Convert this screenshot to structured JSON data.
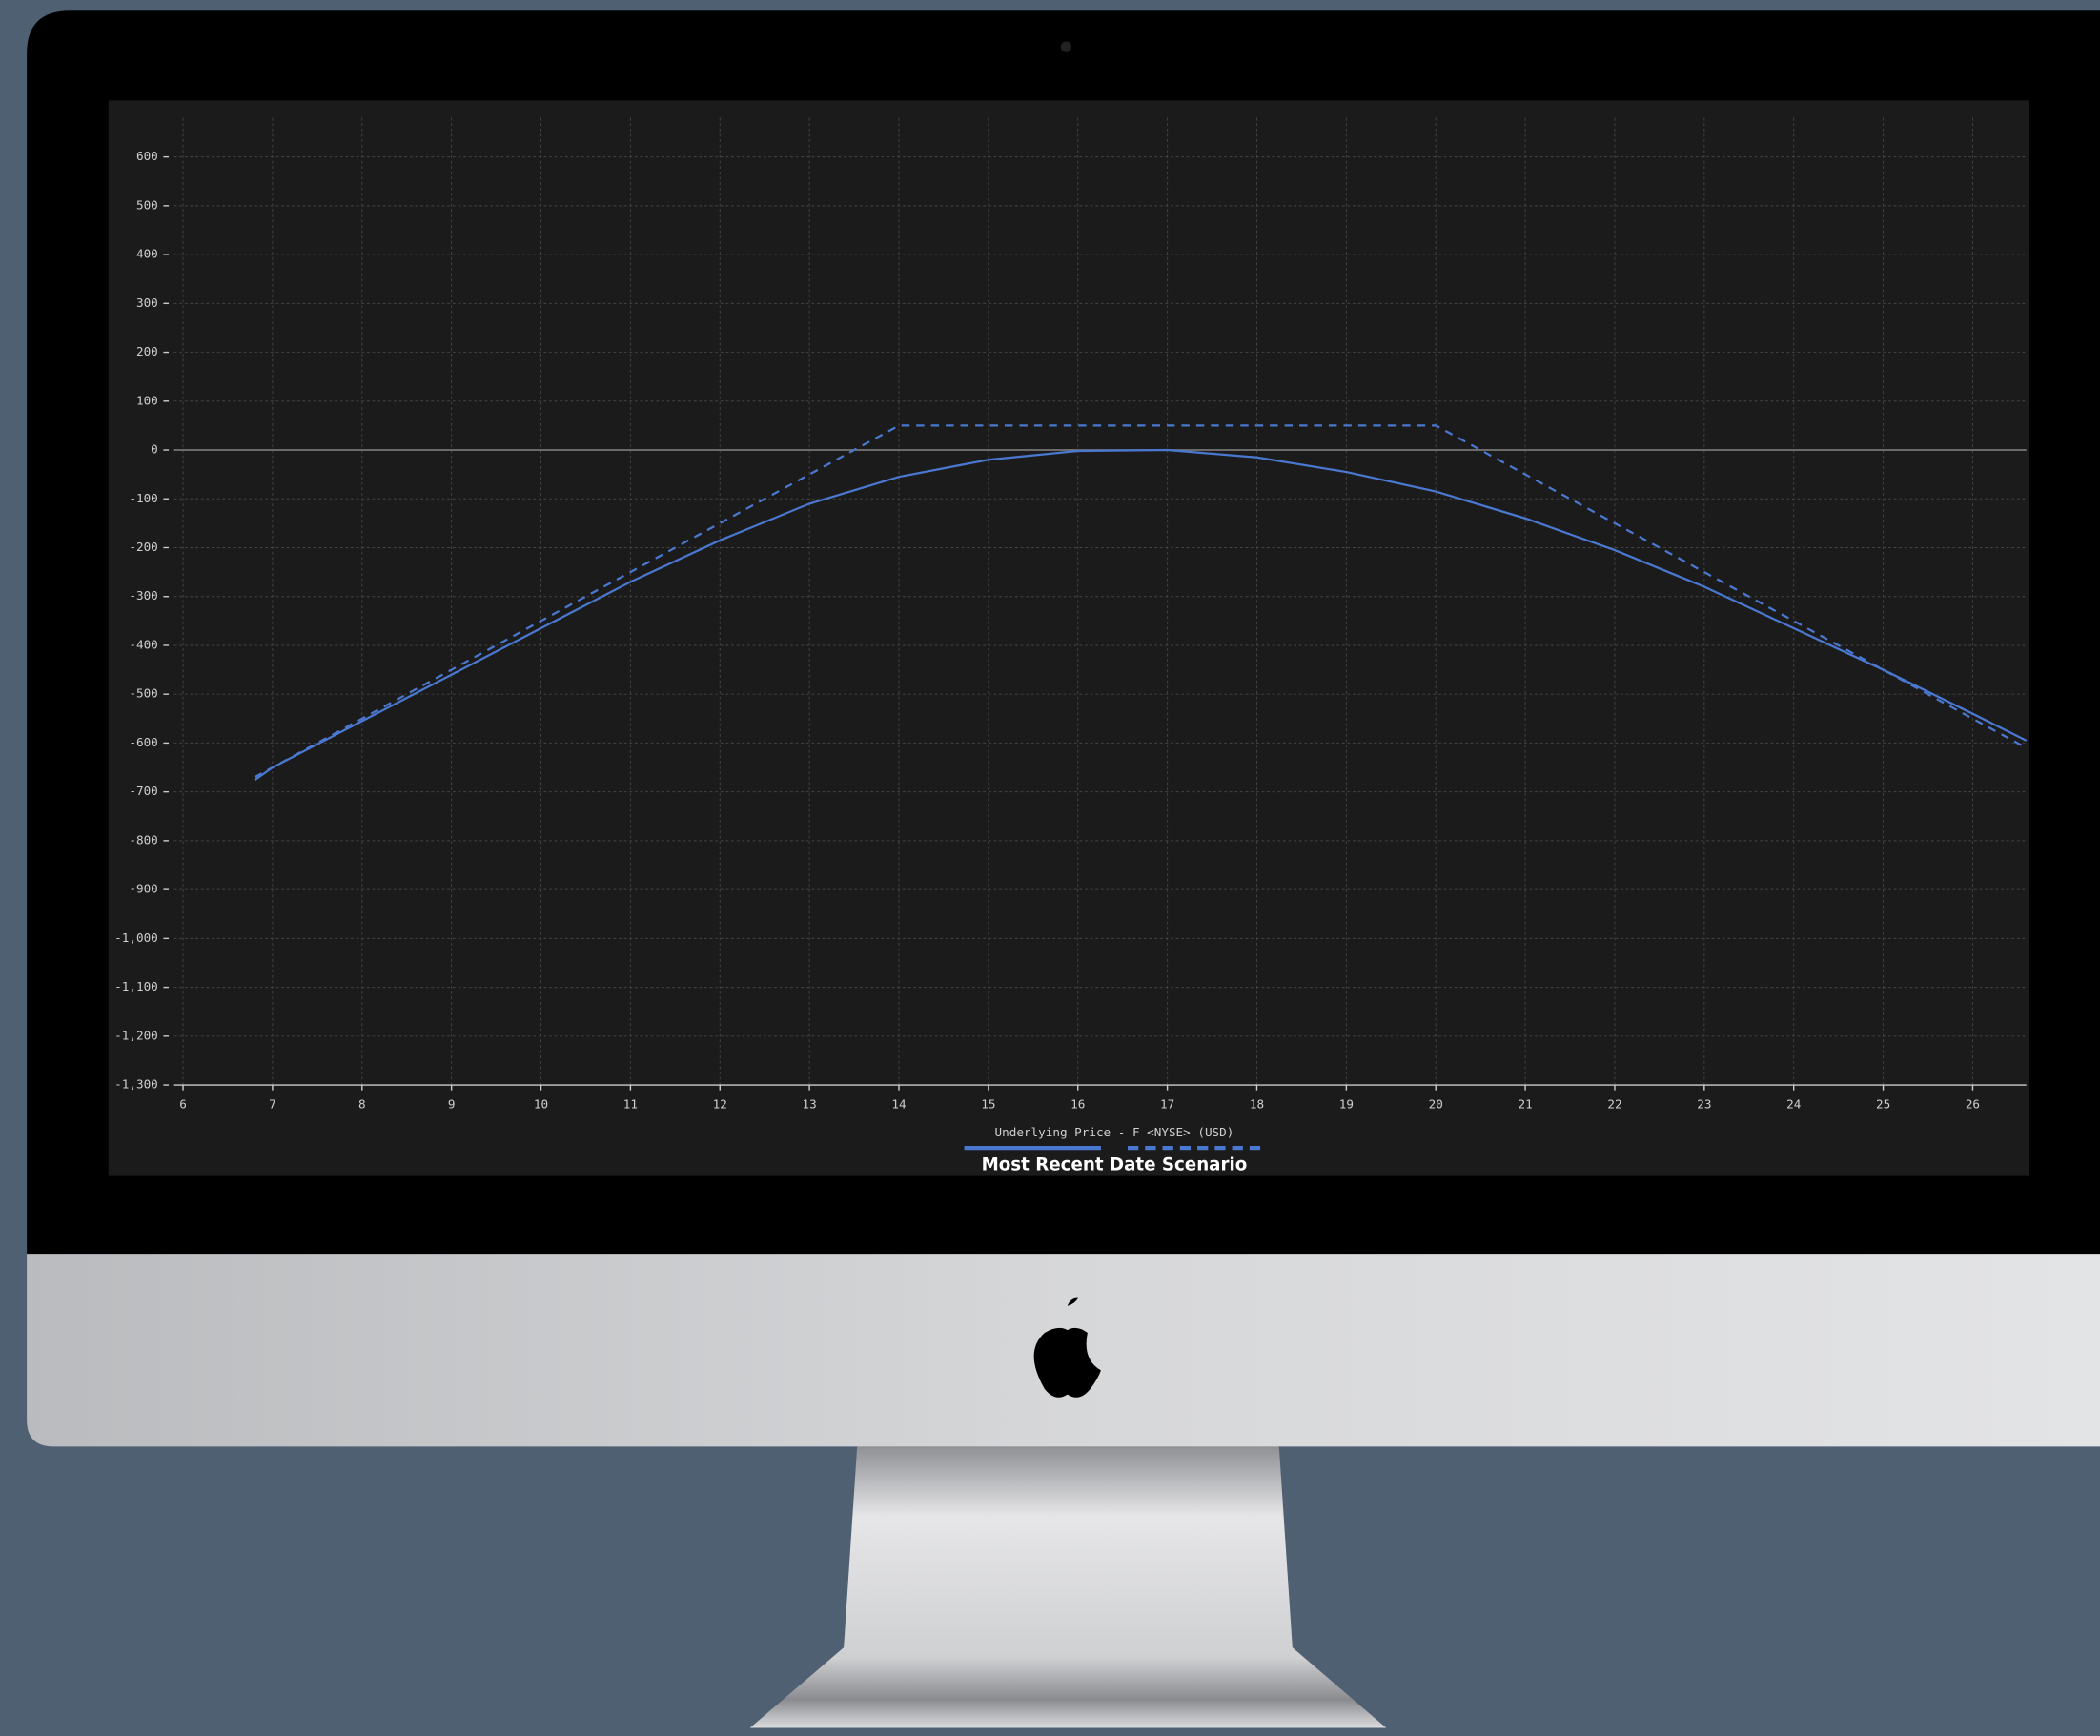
{
  "chart_data": {
    "type": "line",
    "xlabel": "Underlying Price - F <NYSE> (USD)",
    "legend_title": "Most Recent Date Scenario",
    "series": [
      {
        "color": "#4a78d0",
        "style": "solid",
        "x": [
          6.8,
          7,
          8,
          9,
          10,
          11,
          12,
          13,
          14,
          15,
          16,
          17,
          18,
          19,
          20,
          21,
          22,
          23,
          24,
          25,
          26,
          26.6
        ],
        "values": [
          -676,
          -650,
          -555,
          -460,
          -365,
          -270,
          -185,
          -110,
          -55,
          -20,
          -2,
          0,
          -15,
          -45,
          -85,
          -140,
          -205,
          -280,
          -365,
          -450,
          -540,
          -595
        ]
      },
      {
        "color": "#4a78d0",
        "style": "dashed",
        "x": [
          6.8,
          14,
          20,
          26.6
        ],
        "values": [
          -670,
          50,
          50,
          -610
        ]
      }
    ],
    "xlim": [
      5.9,
      26.6
    ],
    "xticks": [
      6,
      7,
      8,
      9,
      10,
      11,
      12,
      13,
      14,
      15,
      16,
      17,
      18,
      19,
      20,
      21,
      22,
      23,
      24,
      25,
      26
    ],
    "ylim": [
      -1300,
      680
    ],
    "yticks": [
      600,
      500,
      400,
      300,
      200,
      100,
      0,
      -100,
      -200,
      -300,
      -400,
      -500,
      -600,
      -700,
      -800,
      -900,
      {
        "value": -1000,
        "label": "-1,000"
      },
      {
        "value": -1100,
        "label": "-1,100"
      },
      {
        "value": -1200,
        "label": "-1,200"
      },
      {
        "value": -1300,
        "label": "-1,300"
      }
    ],
    "grid": true
  }
}
